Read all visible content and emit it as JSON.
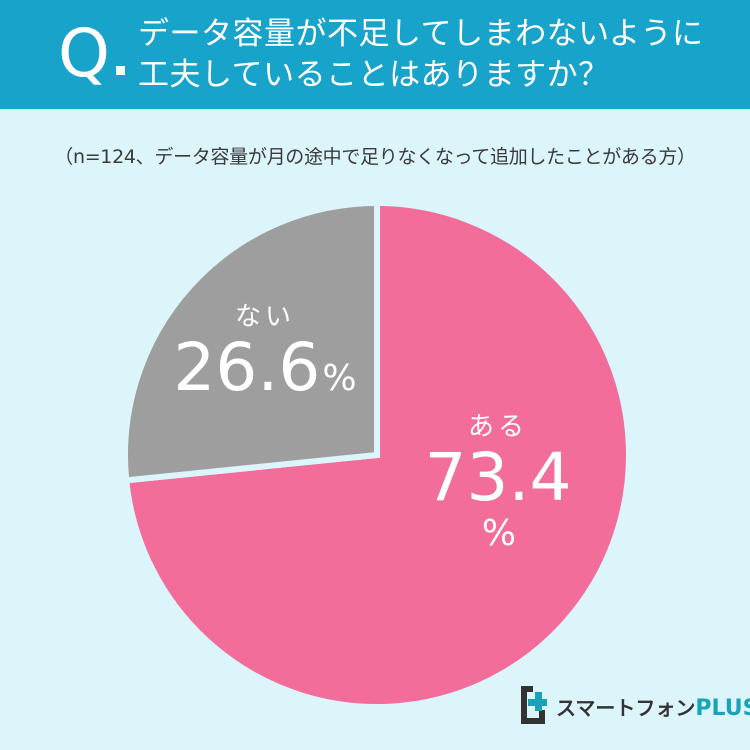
{
  "header": {
    "q_mark": "Q",
    "question_line1": "データ容量が不足してしまわないように",
    "question_line2": "工夫していることはありますか？",
    "bg_color": "#18a3cb"
  },
  "note": "（n=124、データ容量が月の途中で足りなくなって追加したことがある方）",
  "logo": {
    "name": "スマートフォン",
    "suffix": "PLUS"
  },
  "chart_data": {
    "type": "pie",
    "title": "データ容量が不足してしまわないように工夫していることはありますか？",
    "subtitle": "（n=124、データ容量が月の途中で足りなくなって追加したことがある方）",
    "categories": [
      "ある",
      "ない"
    ],
    "values": [
      73.4,
      26.6
    ],
    "unit": "%",
    "colors": [
      "#f26d9a",
      "#9e9e9e"
    ],
    "start_angle": "12 o'clock, clockwise",
    "legend": "none (labels on slices)"
  },
  "labels": {
    "yes": {
      "cat": "ある",
      "pct": "73.4",
      "unit": "%"
    },
    "no": {
      "cat": "ない",
      "pct": "26.6",
      "unit": "%"
    }
  }
}
